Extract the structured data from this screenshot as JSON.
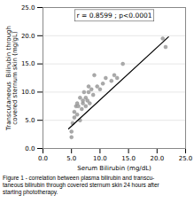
{
  "chart_data": {
    "type": "scatter",
    "xlabel": "Serum Bilirubin (mg/dL)",
    "ylabel": "Transcutaneous  Bilirubin through\ncovered sternum skin (mg/gL)",
    "annotations": [
      {
        "text": "r = 0.8599 ; p<0.0001"
      }
    ],
    "caption": [
      "Figure 1 - correlation between plasma bilirubin and transcu-",
      "taneous bilirubin through covered sternum skin 24 hours after",
      "starting phototherapy."
    ],
    "series": [
      {
        "type": "scatter",
        "color": "#aaaaaa",
        "x": [
          5.0,
          5.0,
          5.2,
          5.5,
          5.5,
          5.8,
          6.0,
          6.0,
          6.2,
          6.5,
          6.5,
          6.8,
          7.0,
          7.0,
          7.2,
          7.5,
          7.5,
          7.8,
          8.0,
          8.0,
          8.2,
          8.5,
          8.8,
          9.0,
          9.5,
          10.0,
          10.5,
          11.0,
          12.0,
          12.5,
          13.0,
          14.0,
          21.0,
          21.5
        ],
        "values": [
          2.0,
          3.0,
          4.5,
          5.5,
          6.5,
          7.5,
          6.0,
          8.0,
          7.5,
          5.0,
          9.0,
          7.0,
          8.0,
          8.5,
          10.0,
          7.5,
          9.0,
          8.5,
          10.0,
          11.0,
          8.0,
          10.5,
          9.5,
          13.0,
          11.0,
          10.5,
          11.5,
          12.5,
          12.0,
          13.0,
          12.5,
          15.0,
          19.5,
          18.0
        ]
      },
      {
        "type": "line",
        "color": "#000000",
        "x": [
          4.5,
          22.0
        ],
        "values": [
          3.5,
          19.8
        ]
      }
    ],
    "xlim": [
      0.0,
      25.0
    ],
    "ylim": [
      0.0,
      25.0
    ],
    "xticks": [
      {
        "value": 0,
        "label": "0.0"
      },
      {
        "value": 5,
        "label": "5.0"
      },
      {
        "value": 10,
        "label": "10.0"
      },
      {
        "value": 15,
        "label": "15.0"
      },
      {
        "value": 20,
        "label": "20.0"
      },
      {
        "value": 25,
        "label": "25.0"
      }
    ],
    "yticks": [
      {
        "value": 0,
        "label": "0.0"
      },
      {
        "value": 5,
        "label": "5.0"
      },
      {
        "value": 10,
        "label": "10.0"
      },
      {
        "value": 15,
        "label": "15.0"
      },
      {
        "value": 20,
        "label": "20.0"
      },
      {
        "value": 25,
        "label": "25.0"
      }
    ],
    "grid": "y"
  }
}
